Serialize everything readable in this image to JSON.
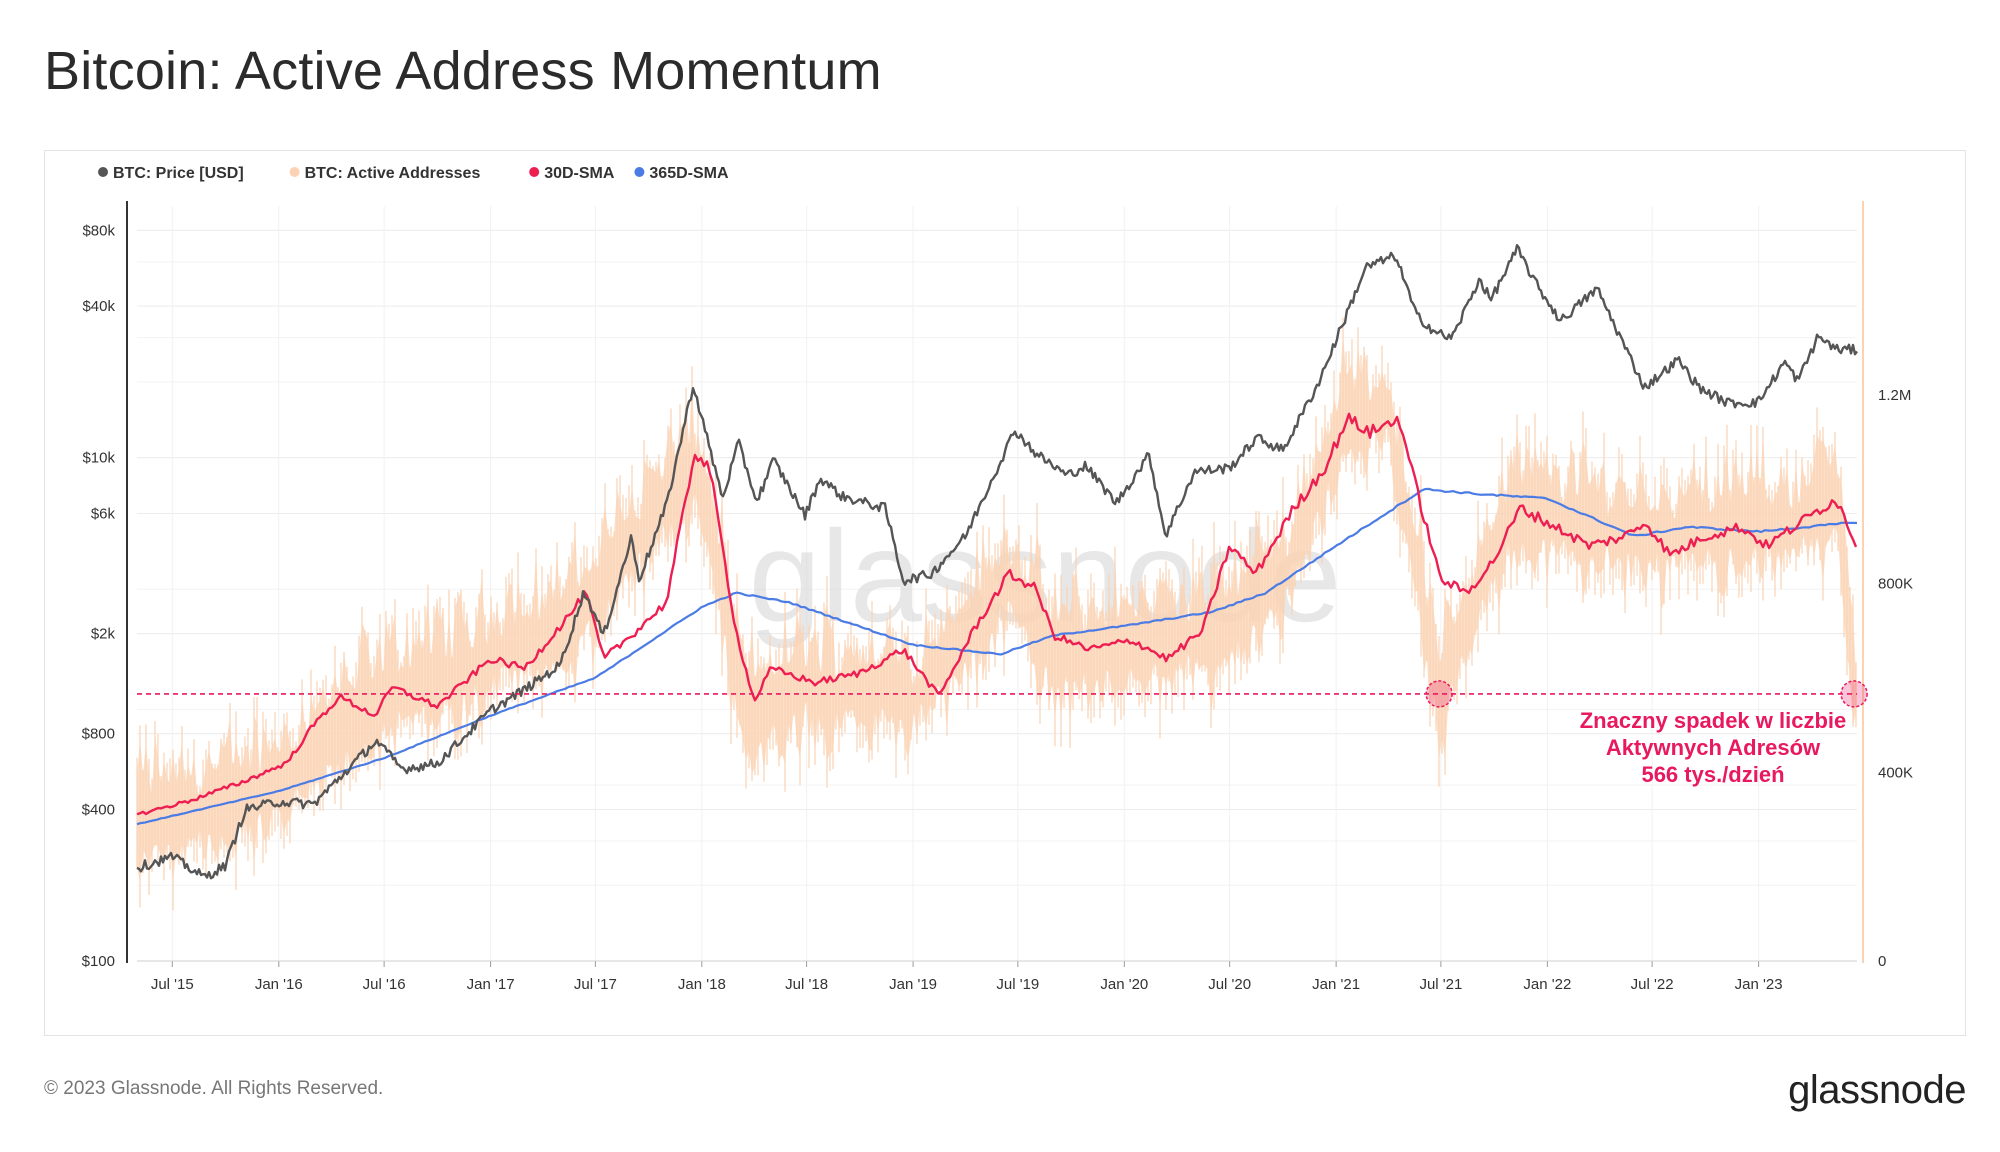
{
  "title": "Bitcoin: Active Address Momentum",
  "footer": {
    "copyright": "© 2023 Glassnode. All Rights Reserved.",
    "logo": "glassnode"
  },
  "colors": {
    "price": "#555555",
    "active": "#fbd3b4",
    "sma30": "#ed1e52",
    "sma365": "#4b7be5",
    "annotation": "#e8195e",
    "watermark": "#d4d4d4"
  },
  "chart_data": {
    "type": "line",
    "title": "Bitcoin: Active Address Momentum",
    "legend_position": "top-left",
    "grid": true,
    "watermark": "glassnode",
    "x_ticks": [
      "Jul '15",
      "Jan '16",
      "Jul '16",
      "Jan '17",
      "Jul '17",
      "Jan '18",
      "Jul '18",
      "Jan '19",
      "Jul '19",
      "Jan '20",
      "Jul '20",
      "Jan '21",
      "Jul '21",
      "Jan '22",
      "Jul '22",
      "Jan '23"
    ],
    "x_tick_dates": [
      "2015-07-01",
      "2016-01-01",
      "2016-07-01",
      "2017-01-01",
      "2017-07-01",
      "2018-01-01",
      "2018-07-01",
      "2019-01-01",
      "2019-07-01",
      "2020-01-01",
      "2020-07-01",
      "2021-01-01",
      "2021-07-01",
      "2022-01-01",
      "2022-07-01",
      "2023-01-01"
    ],
    "x_range": [
      "2015-05-01",
      "2023-06-20"
    ],
    "y_left": {
      "scale": "log",
      "range": [
        100,
        100000
      ],
      "ticks": [
        100,
        400,
        800,
        2000,
        6000,
        10000,
        40000,
        80000
      ],
      "tick_labels": [
        "$100",
        "$400",
        "$800",
        "$2k",
        "$6k",
        "$10k",
        "$40k",
        "$80k"
      ]
    },
    "y_right": {
      "scale": "linear",
      "range": [
        0,
        1600000
      ],
      "ticks": [
        0,
        400000,
        800000,
        1200000
      ],
      "tick_labels": [
        "0",
        "400K",
        "800K",
        "1.2M"
      ]
    },
    "threshold": {
      "value": 566000,
      "axis": "right",
      "style": "dashed"
    },
    "annotation": {
      "lines": [
        "Znaczny spadek w liczbie",
        "Aktywnych Adresów",
        "566 tys./dzień"
      ],
      "markers": [
        {
          "date": "2021-06-28",
          "value": 566000
        },
        {
          "date": "2023-06-15",
          "value": 566000
        }
      ]
    },
    "series": [
      {
        "name": "BTC: Price [USD]",
        "axis": "left",
        "style": "line",
        "points": [
          [
            "2015-05-01",
            235
          ],
          [
            "2015-07-01",
            260
          ],
          [
            "2015-08-25",
            215
          ],
          [
            "2015-10-01",
            240
          ],
          [
            "2015-11-04",
            400
          ],
          [
            "2016-01-01",
            430
          ],
          [
            "2016-03-01",
            420
          ],
          [
            "2016-06-17",
            750
          ],
          [
            "2016-08-01",
            580
          ],
          [
            "2016-10-01",
            610
          ],
          [
            "2017-01-01",
            990
          ],
          [
            "2017-03-01",
            1200
          ],
          [
            "2017-05-01",
            1500
          ],
          [
            "2017-06-12",
            2950
          ],
          [
            "2017-07-15",
            1950
          ],
          [
            "2017-09-01",
            4800
          ],
          [
            "2017-09-15",
            3300
          ],
          [
            "2017-11-01",
            6500
          ],
          [
            "2017-12-17",
            19500
          ],
          [
            "2018-02-06",
            6900
          ],
          [
            "2018-03-05",
            11500
          ],
          [
            "2018-04-06",
            6700
          ],
          [
            "2018-05-05",
            9800
          ],
          [
            "2018-06-28",
            5900
          ],
          [
            "2018-07-25",
            8300
          ],
          [
            "2018-09-01",
            7000
          ],
          [
            "2018-11-14",
            6300
          ],
          [
            "2018-12-15",
            3250
          ],
          [
            "2019-02-01",
            3450
          ],
          [
            "2019-04-02",
            4900
          ],
          [
            "2019-05-15",
            8000
          ],
          [
            "2019-06-26",
            12900
          ],
          [
            "2019-08-01",
            10400
          ],
          [
            "2019-09-24",
            8500
          ],
          [
            "2019-10-26",
            9300
          ],
          [
            "2019-12-18",
            6600
          ],
          [
            "2020-02-13",
            10300
          ],
          [
            "2020-03-12",
            4900
          ],
          [
            "2020-05-01",
            8800
          ],
          [
            "2020-07-01",
            9100
          ],
          [
            "2020-08-17",
            12000
          ],
          [
            "2020-10-01",
            10700
          ],
          [
            "2020-11-30",
            19500
          ],
          [
            "2020-12-31",
            29000
          ],
          [
            "2021-02-21",
            57000
          ],
          [
            "2021-04-14",
            63500
          ],
          [
            "2021-05-19",
            37000
          ],
          [
            "2021-06-22",
            31500
          ],
          [
            "2021-07-20",
            29800
          ],
          [
            "2021-09-06",
            51500
          ],
          [
            "2021-09-25",
            42300
          ],
          [
            "2021-11-10",
            67500
          ],
          [
            "2021-12-15",
            48000
          ],
          [
            "2022-01-24",
            35000
          ],
          [
            "2022-03-28",
            47000
          ],
          [
            "2022-05-12",
            28500
          ],
          [
            "2022-06-18",
            19000
          ],
          [
            "2022-08-15",
            24500
          ],
          [
            "2022-09-20",
            19000
          ],
          [
            "2022-11-09",
            16500
          ],
          [
            "2022-12-31",
            16600
          ],
          [
            "2023-02-15",
            24000
          ],
          [
            "2023-03-10",
            20200
          ],
          [
            "2023-04-14",
            30400
          ],
          [
            "2023-05-15",
            27000
          ],
          [
            "2023-06-20",
            26800
          ]
        ]
      },
      {
        "name": "BTC: Active Addresses",
        "axis": "right",
        "style": "daily-band",
        "points": [
          [
            "2015-05-01",
            300000
          ],
          [
            "2015-10-01",
            320000
          ],
          [
            "2016-01-01",
            380000
          ],
          [
            "2016-06-01",
            540000
          ],
          [
            "2017-01-01",
            640000
          ],
          [
            "2017-06-01",
            720000
          ],
          [
            "2017-12-15",
            1050000
          ],
          [
            "2018-01-20",
            900000
          ],
          [
            "2018-03-15",
            520000
          ],
          [
            "2018-07-01",
            580000
          ],
          [
            "2019-01-01",
            550000
          ],
          [
            "2019-06-15",
            800000
          ],
          [
            "2019-09-01",
            640000
          ],
          [
            "2020-01-01",
            660000
          ],
          [
            "2020-06-01",
            680000
          ],
          [
            "2020-10-01",
            800000
          ],
          [
            "2021-01-15",
            1150000
          ],
          [
            "2021-04-01",
            1150000
          ],
          [
            "2021-06-28",
            566000
          ],
          [
            "2021-11-01",
            950000
          ],
          [
            "2022-06-01",
            900000
          ],
          [
            "2023-03-01",
            920000
          ],
          [
            "2023-05-15",
            980000
          ],
          [
            "2023-06-15",
            566000
          ]
        ],
        "band_halfwidth": 160000
      },
      {
        "name": "30D-SMA",
        "axis": "right",
        "style": "line",
        "points": [
          [
            "2015-05-01",
            310000
          ],
          [
            "2015-08-01",
            340000
          ],
          [
            "2015-11-01",
            380000
          ],
          [
            "2016-01-15",
            420000
          ],
          [
            "2016-03-01",
            500000
          ],
          [
            "2016-04-15",
            560000
          ],
          [
            "2016-06-15",
            520000
          ],
          [
            "2016-07-15",
            580000
          ],
          [
            "2016-10-01",
            540000
          ],
          [
            "2017-01-01",
            640000
          ],
          [
            "2017-03-01",
            620000
          ],
          [
            "2017-05-15",
            730000
          ],
          [
            "2017-06-15",
            780000
          ],
          [
            "2017-07-15",
            640000
          ],
          [
            "2017-09-01",
            690000
          ],
          [
            "2017-11-01",
            760000
          ],
          [
            "2017-12-20",
            1080000
          ],
          [
            "2018-01-15",
            1040000
          ],
          [
            "2018-03-01",
            700000
          ],
          [
            "2018-04-01",
            550000
          ],
          [
            "2018-05-01",
            620000
          ],
          [
            "2018-07-15",
            590000
          ],
          [
            "2018-10-01",
            610000
          ],
          [
            "2018-12-15",
            660000
          ],
          [
            "2019-02-15",
            560000
          ],
          [
            "2019-04-15",
            700000
          ],
          [
            "2019-06-15",
            820000
          ],
          [
            "2019-08-01",
            790000
          ],
          [
            "2019-09-01",
            690000
          ],
          [
            "2019-11-01",
            660000
          ],
          [
            "2020-01-15",
            680000
          ],
          [
            "2020-03-15",
            640000
          ],
          [
            "2020-05-15",
            700000
          ],
          [
            "2020-07-01",
            880000
          ],
          [
            "2020-08-15",
            820000
          ],
          [
            "2020-10-15",
            950000
          ],
          [
            "2020-12-15",
            1050000
          ],
          [
            "2021-01-20",
            1150000
          ],
          [
            "2021-03-01",
            1120000
          ],
          [
            "2021-04-20",
            1150000
          ],
          [
            "2021-05-20",
            1000000
          ],
          [
            "2021-06-30",
            810000
          ],
          [
            "2021-08-15",
            780000
          ],
          [
            "2021-10-01",
            850000
          ],
          [
            "2021-11-15",
            960000
          ],
          [
            "2022-01-15",
            920000
          ],
          [
            "2022-03-15",
            880000
          ],
          [
            "2022-05-15",
            900000
          ],
          [
            "2022-06-20",
            930000
          ],
          [
            "2022-08-01",
            860000
          ],
          [
            "2022-10-01",
            900000
          ],
          [
            "2022-12-01",
            920000
          ],
          [
            "2023-01-15",
            880000
          ],
          [
            "2023-03-15",
            930000
          ],
          [
            "2023-05-15",
            980000
          ],
          [
            "2023-06-20",
            880000
          ]
        ]
      },
      {
        "name": "365D-SMA",
        "axis": "right",
        "style": "line",
        "points": [
          [
            "2015-05-01",
            290000
          ],
          [
            "2016-01-01",
            360000
          ],
          [
            "2016-07-01",
            430000
          ],
          [
            "2017-01-01",
            520000
          ],
          [
            "2017-07-01",
            600000
          ],
          [
            "2018-01-01",
            750000
          ],
          [
            "2018-03-01",
            780000
          ],
          [
            "2018-06-01",
            760000
          ],
          [
            "2019-01-01",
            670000
          ],
          [
            "2019-06-01",
            650000
          ],
          [
            "2019-09-01",
            690000
          ],
          [
            "2020-01-01",
            710000
          ],
          [
            "2020-06-01",
            740000
          ],
          [
            "2020-09-01",
            780000
          ],
          [
            "2021-01-01",
            880000
          ],
          [
            "2021-06-01",
            1000000
          ],
          [
            "2021-09-01",
            990000
          ],
          [
            "2022-01-01",
            980000
          ],
          [
            "2022-06-01",
            900000
          ],
          [
            "2022-09-01",
            920000
          ],
          [
            "2023-01-01",
            910000
          ],
          [
            "2023-06-20",
            930000
          ]
        ]
      }
    ]
  }
}
